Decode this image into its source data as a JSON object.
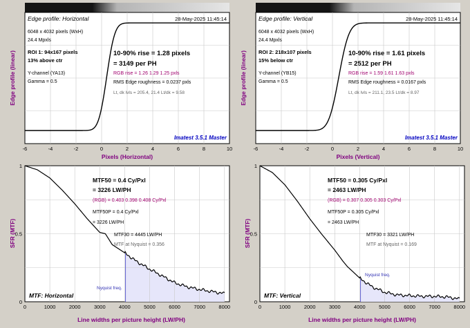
{
  "colors": {
    "background": "#d4d0c8",
    "plot_background": "#ffffff",
    "curve": "#000000",
    "axis_label": "#800080",
    "rgb_text": "#a0006e",
    "brand_text": "#0000c0",
    "nyquist_line": "#6464d2",
    "nyquist_fill": "#e6e6fa",
    "gray_text": "#646464"
  },
  "chart_data": [
    {
      "type": "line",
      "panel": "edge-horizontal",
      "title": "Edge profile: Horizontal",
      "date": "28-May-2025 11:45:14",
      "xlabel": "Pixels (Horizontal)",
      "ylabel": "Edge profile (linear)",
      "xlim": [
        -6,
        10
      ],
      "xticks": [
        "-6",
        "-4",
        "-2",
        "0",
        "2",
        "4",
        "6",
        "8",
        "10"
      ],
      "info": [
        "6048 x 4032 pixels (WxH)",
        "24.4 Mpxls"
      ],
      "roi": [
        "ROI 1:  94x167 pixels",
        "13% above ctr"
      ],
      "channel": [
        "Y-channel  (YA13)",
        "Gamma = 0.5"
      ],
      "rise": "10-90% rise = 1.28 pixels",
      "per_ph": "= 3149 per PH",
      "rgb_rise": "RGB rise = 1.26  1.29  1.25 pxls",
      "roughness": "RMS Edge roughness = 0.0237 pxls",
      "levels": "Lt, dk lvls = 205.4, 21.4   Lt/dk = 9.58",
      "brand": "Imatest 3.5.1 Master",
      "edge": {
        "center": 0.4,
        "rise_10_90": 1.28,
        "low": 0.0,
        "high": 1.0
      }
    },
    {
      "type": "line",
      "panel": "edge-vertical",
      "title": "Edge profile: Vertical",
      "date": "28-May-2025 11:45:14",
      "xlabel": "Pixels (Vertical)",
      "ylabel": "Edge profile (linear)",
      "xlim": [
        -6,
        10
      ],
      "xticks": [
        "-6",
        "-4",
        "-2",
        "0",
        "2",
        "4",
        "6",
        "8",
        "10"
      ],
      "info": [
        "6048 x 4032 pixels (WxH)",
        "24.4 Mpxls"
      ],
      "roi": [
        "ROI 2:  218x107 pixels",
        "15% below ctr"
      ],
      "channel": [
        "Y-channel  (YB15)",
        "Gamma = 0.5"
      ],
      "rise": "10-90% rise = 1.61 pixels",
      "per_ph": "= 2512 per PH",
      "rgb_rise": "RGB rise = 1.59  1.61  1.63 pxls",
      "roughness": "RMS Edge roughness = 0.0167 pxls",
      "levels": "Lt, dk lvls = 211.1, 23.5   Lt/dk = 8.97",
      "brand": "Imatest 3.5.1 Master",
      "edge": {
        "center": 0.5,
        "rise_10_90": 1.61,
        "low": 0.0,
        "high": 1.0
      }
    },
    {
      "type": "line",
      "panel": "mtf-horizontal",
      "title": "MTF: Horizontal",
      "xlabel": "Line widths per picture height (LW/PH)",
      "ylabel": "SFR (MTF)",
      "xlim": [
        0,
        8200
      ],
      "ylim": [
        0,
        1
      ],
      "xticks": [
        "0",
        "1000",
        "2000",
        "3000",
        "4000",
        "5000",
        "6000",
        "7000",
        "8000"
      ],
      "yticks": [
        "0",
        "0.5",
        "1"
      ],
      "mtf50": "MTF50 = 0.4 Cy/Pxl",
      "mtf50_lw": "= 3226 LW/PH",
      "rgb": "(RGB) = 0.403  0.398  0.408 Cy/Pxl",
      "mtf50p": "MTF50P = 0.4 Cy/Pxl",
      "mtf50p_lw": "= 3226 LW/PH",
      "mtf30": "MTF30 = 4445 LW/PH",
      "mtf_nyq": "MTF at Nyquist = 0.356",
      "nyquist_label": "Nyquist freq.",
      "nyquist_x": 4032,
      "curve": {
        "x": [
          0,
          500,
          1000,
          1500,
          2000,
          2500,
          3000,
          3226,
          3500,
          4000,
          4445,
          5000,
          5500,
          6000,
          6500,
          7000,
          7500,
          8000
        ],
        "y": [
          1.0,
          0.97,
          0.91,
          0.82,
          0.72,
          0.61,
          0.51,
          0.5,
          0.42,
          0.36,
          0.3,
          0.24,
          0.19,
          0.14,
          0.11,
          0.09,
          0.075,
          0.06
        ]
      }
    },
    {
      "type": "line",
      "panel": "mtf-vertical",
      "title": "MTF: Vertical",
      "xlabel": "Line widths per picture height (LW/PH)",
      "ylabel": "SFR (MTF)",
      "xlim": [
        0,
        8200
      ],
      "ylim": [
        0,
        1
      ],
      "xticks": [
        "0",
        "1000",
        "2000",
        "3000",
        "4000",
        "5000",
        "6000",
        "7000",
        "8000"
      ],
      "yticks": [
        "0",
        "0.5",
        "1"
      ],
      "mtf50": "MTF50 = 0.305 Cy/Pxl",
      "mtf50_lw": "= 2463 LW/PH",
      "rgb": "(RGB) = 0.307  0.305  0.303 Cy/Pxl",
      "mtf50p": "MTF50P = 0.305 Cy/Pxl",
      "mtf50p_lw": "= 2463 LW/PH",
      "mtf30": "MTF30 = 3321 LW/PH",
      "mtf_nyq": "MTF at Nyquist = 0.169",
      "nyquist_label": "Nyquist freq.",
      "nyquist_x": 4032,
      "curve": {
        "x": [
          0,
          500,
          1000,
          1500,
          2000,
          2463,
          3000,
          3321,
          3500,
          4032,
          4500,
          5000,
          5500,
          6000,
          6500,
          7000,
          7500,
          8000
        ],
        "y": [
          1.0,
          0.95,
          0.86,
          0.74,
          0.61,
          0.5,
          0.38,
          0.3,
          0.26,
          0.169,
          0.11,
          0.07,
          0.05,
          0.045,
          0.04,
          0.04,
          0.035,
          0.02
        ]
      }
    }
  ]
}
